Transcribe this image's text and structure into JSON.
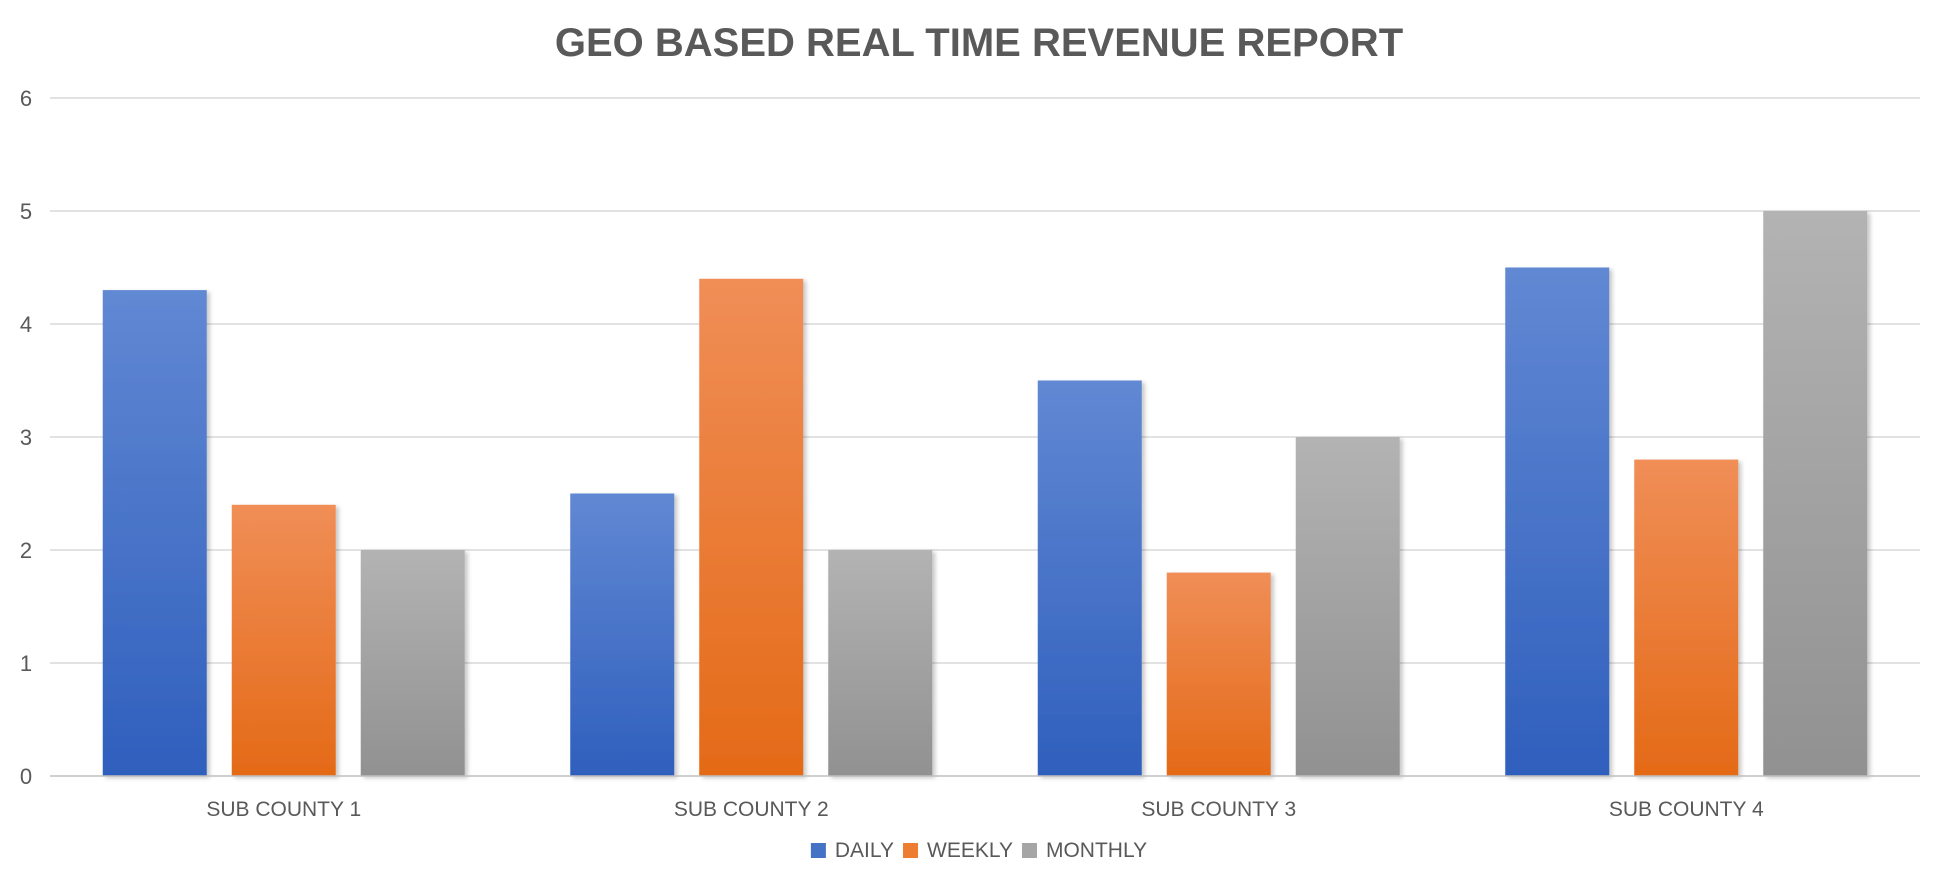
{
  "chart_data": {
    "type": "bar",
    "title": "GEO BASED REAL TIME REVENUE REPORT",
    "xlabel": "",
    "ylabel": "",
    "categories": [
      "SUB COUNTY 1",
      "SUB COUNTY 2",
      "SUB COUNTY 3",
      "SUB COUNTY 4"
    ],
    "series": [
      {
        "name": "DAILY",
        "values": [
          4.3,
          2.5,
          3.5,
          4.5
        ],
        "color": "#4472c4",
        "gradient": [
          "#6188d3",
          "#2f5fbd"
        ]
      },
      {
        "name": "WEEKLY",
        "values": [
          2.4,
          4.4,
          1.8,
          2.8
        ],
        "color": "#ed7d31",
        "gradient": [
          "#f08e57",
          "#e46a17"
        ]
      },
      {
        "name": "MONTHLY",
        "values": [
          2.0,
          2.0,
          3.0,
          5.0
        ],
        "color": "#a5a5a5",
        "gradient": [
          "#b3b3b3",
          "#919191"
        ]
      }
    ],
    "ylim": [
      0,
      6
    ],
    "yticks": [
      "0",
      "1",
      "2",
      "3",
      "4",
      "5",
      "6"
    ],
    "grid": true,
    "legend_position": "bottom"
  }
}
